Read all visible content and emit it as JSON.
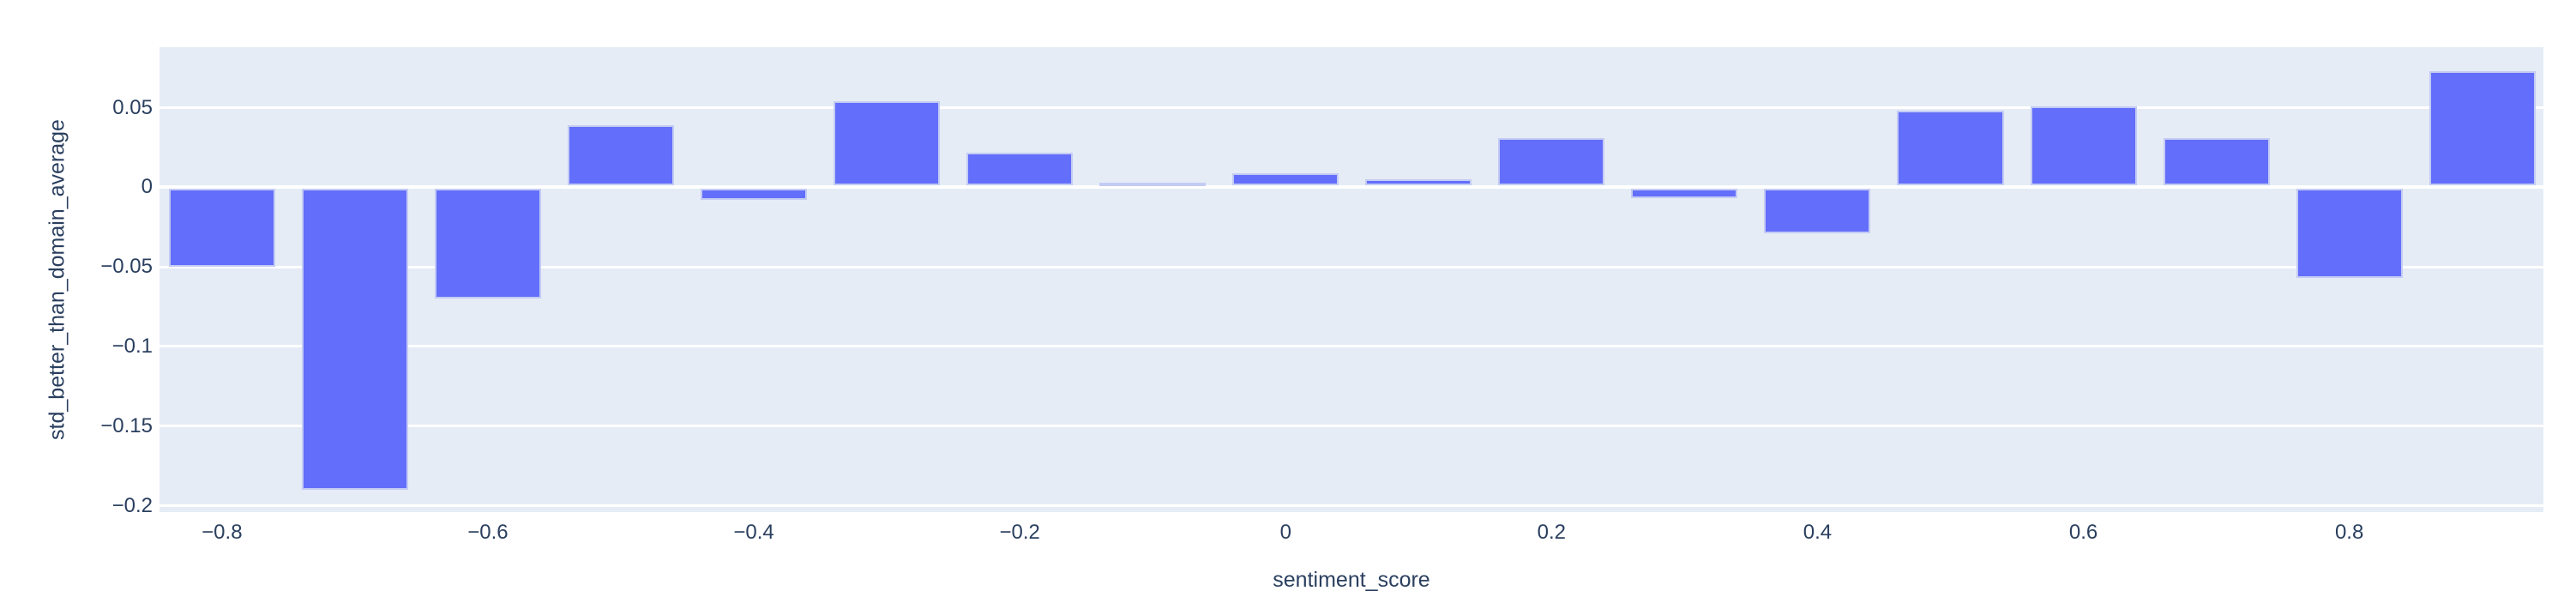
{
  "chart_data": {
    "type": "bar",
    "title": "",
    "xlabel": "sentiment_score",
    "ylabel": "std_better_than_domain_average",
    "x": [
      -0.8,
      -0.7,
      -0.6,
      -0.5,
      -0.4,
      -0.3,
      -0.2,
      -0.1,
      0.0,
      0.1,
      0.2,
      0.3,
      0.4,
      0.5,
      0.6,
      0.7,
      0.8,
      0.9
    ],
    "values": [
      -0.05,
      -0.19,
      -0.07,
      0.039,
      -0.008,
      0.054,
      0.022,
      0.003,
      0.009,
      0.005,
      0.031,
      -0.007,
      -0.029,
      0.048,
      0.051,
      0.031,
      -0.057,
      0.073
    ],
    "bar_width_x": 0.08,
    "xlim": [
      -0.847,
      0.946
    ],
    "ylim": [
      -0.204,
      0.088
    ],
    "grid": true,
    "legend_position": "none",
    "x_ticks": [
      {
        "v": -0.8,
        "label": "−0.8"
      },
      {
        "v": -0.6,
        "label": "−0.6"
      },
      {
        "v": -0.4,
        "label": "−0.4"
      },
      {
        "v": -0.2,
        "label": "−0.2"
      },
      {
        "v": 0,
        "label": "0"
      },
      {
        "v": 0.2,
        "label": "0.2"
      },
      {
        "v": 0.4,
        "label": "0.4"
      },
      {
        "v": 0.6,
        "label": "0.6"
      },
      {
        "v": 0.8,
        "label": "0.8"
      }
    ],
    "y_ticks": [
      {
        "v": 0.05,
        "label": "0.05"
      },
      {
        "v": 0,
        "label": "0"
      },
      {
        "v": -0.05,
        "label": "−0.05"
      },
      {
        "v": -0.1,
        "label": "−0.1"
      },
      {
        "v": -0.15,
        "label": "−0.15"
      },
      {
        "v": -0.2,
        "label": "−0.2"
      }
    ],
    "colors": {
      "bar": "#636efa",
      "plot_bg": "#e5ecf6",
      "grid": "#ffffff",
      "zeroline": "#ffffff",
      "text": "#2a3f5f",
      "page_bg": "#ffffff"
    }
  }
}
